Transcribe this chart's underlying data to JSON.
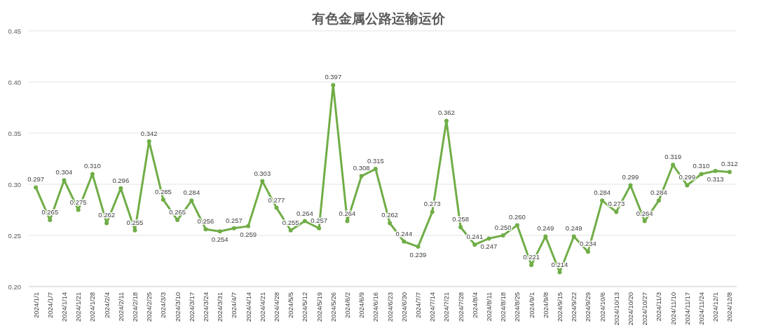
{
  "chart_data": {
    "type": "line",
    "title": "有色金属公路运输运价",
    "categories": [
      "2024/1/1",
      "2024/1/7",
      "2024/1/14",
      "2024/1/21",
      "2024/1/28",
      "2024/2/4",
      "2024/2/11",
      "2024/2/18",
      "2024/2/25",
      "2024/3/3",
      "2024/3/10",
      "2024/3/17",
      "2024/3/24",
      "2024/3/31",
      "2024/4/7",
      "2024/4/14",
      "2024/4/21",
      "2024/4/28",
      "2024/5/5",
      "2024/5/12",
      "2024/5/19",
      "2024/5/26",
      "2024/6/2",
      "2024/6/9",
      "2024/6/16",
      "2024/6/23",
      "2024/6/30",
      "2024/7/7",
      "2024/7/14",
      "2024/7/21",
      "2024/7/28",
      "2024/8/4",
      "2024/8/11",
      "2024/8/18",
      "2024/8/25",
      "2024/9/1",
      "2024/9/8",
      "2024/9/15",
      "2024/9/22",
      "2024/9/29",
      "2024/10/6",
      "2024/10/13",
      "2024/10/20",
      "2024/10/27",
      "2024/11/3",
      "2024/11/10",
      "2024/11/17",
      "2024/11/24",
      "2024/12/1",
      "2024/12/8"
    ],
    "series": [
      {
        "color": "#70ad47",
        "values": [
          0.297,
          0.265,
          0.304,
          0.275,
          0.31,
          0.262,
          0.296,
          0.255,
          0.342,
          0.285,
          0.265,
          0.284,
          0.256,
          0.254,
          0.257,
          0.259,
          0.303,
          0.277,
          0.255,
          0.264,
          0.257,
          0.397,
          0.264,
          0.308,
          0.315,
          0.262,
          0.244,
          0.239,
          0.273,
          0.362,
          0.258,
          0.241,
          0.247,
          0.25,
          0.26,
          0.221,
          0.249,
          0.214,
          0.249,
          0.234,
          0.284,
          0.273,
          0.299,
          0.264,
          0.284,
          0.319,
          0.299,
          0.31,
          0.313,
          0.312
        ],
        "value_labels": [
          "0.297",
          "0.265",
          "0.304",
          "0.275",
          "0.310",
          "0.262",
          "0.296",
          "0.255",
          "0.342",
          "0.285",
          "0.265",
          "0.284",
          "0.256",
          "0.254",
          "0.257",
          "0.259",
          "0.303",
          "0.277",
          "0.255",
          "0.264",
          "0.257",
          "0.397",
          "0.264",
          "0.308",
          "0.315",
          "0.262",
          "0.244",
          "0.239",
          "0.273",
          "0.362",
          "0.258",
          "0.241",
          "0.247",
          "0.250",
          "0.260",
          "0.221",
          "0.249",
          "0.214",
          "0.249",
          "0.234",
          "0.284",
          "0.273",
          "0.299",
          "0.264",
          "0.284",
          "0.319",
          "0.299",
          "0.310",
          "0.313",
          "0.312"
        ]
      }
    ],
    "ylim": [
      0.2,
      0.45
    ],
    "yticks": [
      {
        "value": 0.2,
        "label": "0.20"
      },
      {
        "value": 0.25,
        "label": "0.25"
      },
      {
        "value": 0.3,
        "label": "0.30"
      },
      {
        "value": 0.35,
        "label": "0.35"
      },
      {
        "value": 0.4,
        "label": "0.40"
      },
      {
        "value": 0.45,
        "label": "0.45"
      }
    ],
    "grid": "y",
    "marker": "circle",
    "line_style": "solid"
  }
}
